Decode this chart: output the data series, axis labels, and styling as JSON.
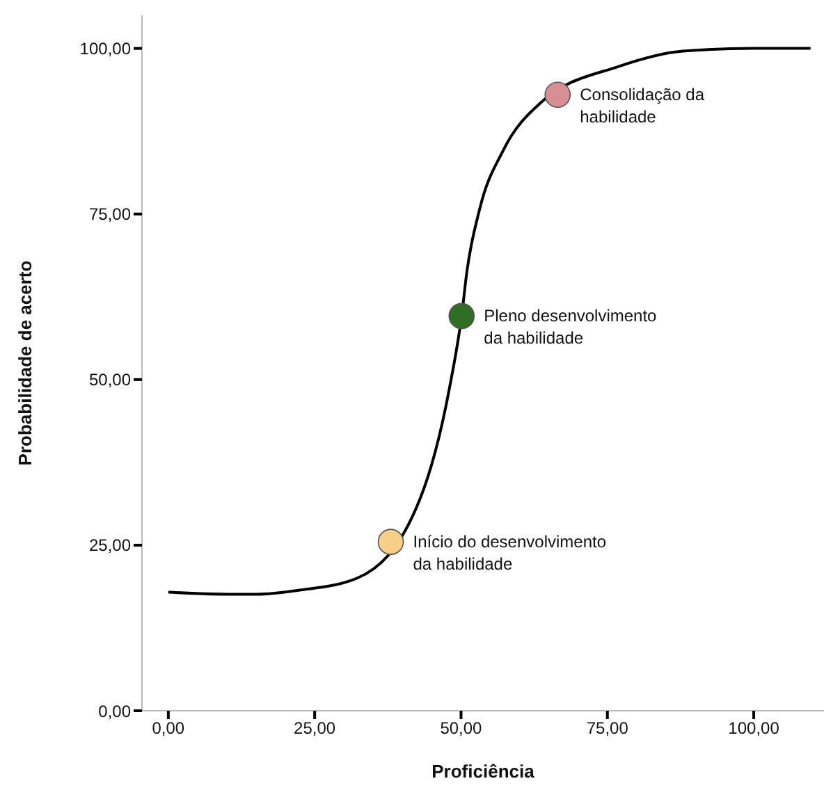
{
  "chart_data": {
    "type": "line",
    "xlabel": "Proficiência",
    "ylabel": "Probabilidade de acerto",
    "xlim": [
      -4.5,
      112
    ],
    "ylim": [
      0,
      105
    ],
    "xticks": [
      {
        "value": 0,
        "label": "0,00"
      },
      {
        "value": 25,
        "label": "25,00"
      },
      {
        "value": 50,
        "label": "50,00"
      },
      {
        "value": 75,
        "label": "75,00"
      },
      {
        "value": 100,
        "label": "100,00"
      }
    ],
    "yticks": [
      {
        "value": 0,
        "label": "0,00"
      },
      {
        "value": 25,
        "label": "25,00"
      },
      {
        "value": 50,
        "label": "50,00"
      },
      {
        "value": 75,
        "label": "75,00"
      },
      {
        "value": 100,
        "label": "100,00"
      }
    ],
    "series": [
      {
        "color": "#000000",
        "marker": "none",
        "x": [
          0,
          10,
          15,
          22.3,
          32.2,
          43,
          48,
          50.1,
          51,
          53.2,
          57.2,
          63.6,
          77,
          87.9,
          100,
          109.7
        ],
        "values": [
          17.9,
          17.6,
          17.6,
          18.2,
          20,
          32,
          48.6,
          59.6,
          66.3,
          75.8,
          84.6,
          91.8,
          97.3,
          99.6,
          100,
          100
        ]
      },
      {
        "type": "scatter",
        "marker": "circle",
        "x": [
          38,
          50.1,
          66.5
        ],
        "values": [
          25.5,
          59.6,
          93
        ],
        "colors": [
          "#f7cf88",
          "#2f6e24",
          "#d88f93"
        ]
      }
    ],
    "annotations": [
      {
        "text": "Início do desenvolvimento\nda habilidade",
        "x": 38,
        "y": 25.5
      },
      {
        "text": "Pleno desenvolvimento\nda habilidade",
        "x": 50.1,
        "y": 59.6
      },
      {
        "text": "Consolidação da\nhabilidade",
        "x": 66.5,
        "y": 93
      }
    ]
  }
}
